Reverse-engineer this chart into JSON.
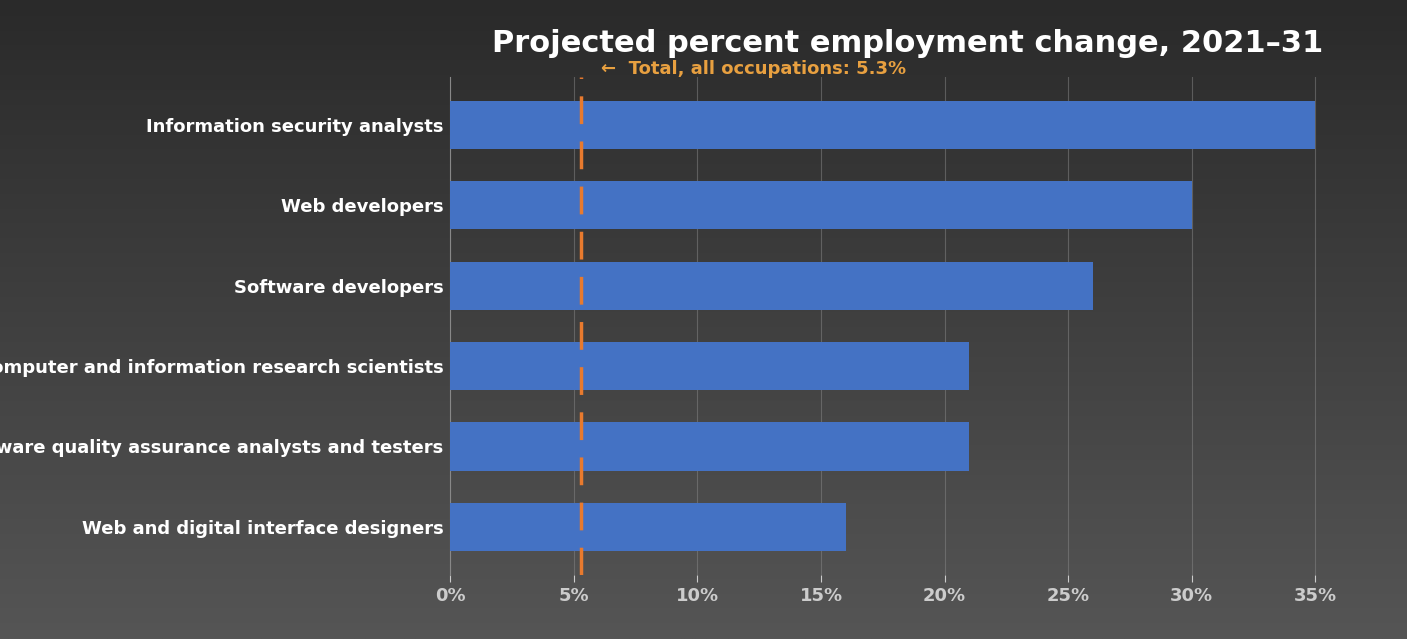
{
  "title": "Projected percent employment change, 2021–31",
  "title_fontsize": 22,
  "title_color": "#ffffff",
  "background_color_top": "#2a2a2a",
  "background_color_bottom": "#555555",
  "plot_bg_color": "none",
  "bar_color": "#4472C4",
  "categories": [
    "Web and digital interface designers",
    "Software quality assurance analysts and testers",
    "Computer and information research scientists",
    "Software developers",
    "Web developers",
    "Information security analysts"
  ],
  "values": [
    16,
    21,
    21,
    26,
    30,
    35
  ],
  "xlim": [
    0,
    37
  ],
  "xticks": [
    0,
    5,
    10,
    15,
    20,
    25,
    30,
    35
  ],
  "xtick_labels": [
    "0%",
    "5%",
    "10%",
    "15%",
    "20%",
    "25%",
    "30%",
    "35%"
  ],
  "reference_line_x": 5.3,
  "reference_line_color": "#E87A2E",
  "reference_label": "←  Total, all occupations: 5.3%",
  "reference_label_color": "#E8A040",
  "label_color": "#ffffff",
  "label_fontsize": 13,
  "tick_label_color": "#cccccc",
  "tick_label_fontsize": 13,
  "grid_color": "#888888",
  "bar_height": 0.6
}
